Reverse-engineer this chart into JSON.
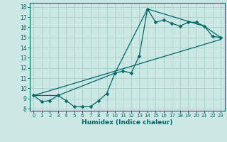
{
  "xlabel": "Humidex (Indice chaleur)",
  "bg_color": "#cce8e4",
  "grid_color": "#aad4cc",
  "line_color": "#006666",
  "xlim": [
    -0.5,
    23.5
  ],
  "ylim": [
    7.8,
    18.4
  ],
  "xticks": [
    0,
    1,
    2,
    3,
    4,
    5,
    6,
    7,
    8,
    9,
    10,
    11,
    12,
    13,
    14,
    15,
    16,
    17,
    18,
    19,
    20,
    21,
    22,
    23
  ],
  "yticks": [
    8,
    9,
    10,
    11,
    12,
    13,
    14,
    15,
    16,
    17,
    18
  ],
  "line1_x": [
    0,
    1,
    2,
    3,
    4,
    5,
    6,
    7,
    8,
    9,
    10,
    11,
    12,
    13,
    14,
    15,
    16,
    17,
    18,
    19,
    20,
    21,
    22,
    23
  ],
  "line1_y": [
    9.3,
    8.7,
    8.8,
    9.3,
    8.8,
    8.2,
    8.2,
    8.2,
    8.8,
    9.5,
    11.5,
    11.7,
    11.5,
    13.2,
    17.8,
    16.5,
    16.7,
    16.4,
    16.1,
    16.5,
    16.5,
    16.1,
    15.1,
    15.0
  ],
  "line2_x": [
    0,
    3,
    10,
    14,
    21,
    23
  ],
  "line2_y": [
    9.3,
    9.3,
    11.5,
    17.8,
    16.1,
    15.0
  ],
  "line3_x": [
    0,
    23
  ],
  "line3_y": [
    9.3,
    14.8
  ]
}
